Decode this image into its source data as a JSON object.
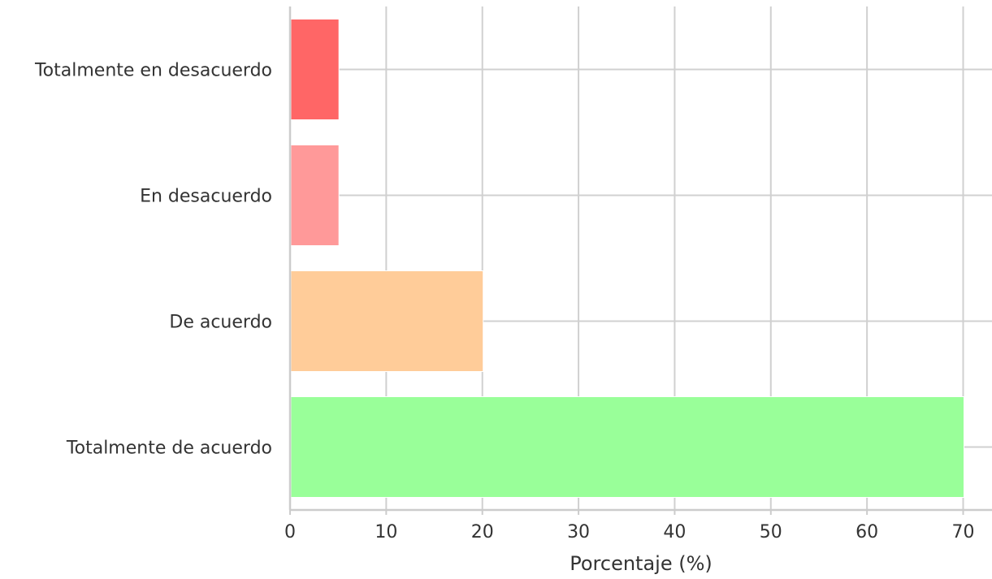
{
  "chart_data": {
    "type": "bar",
    "orientation": "horizontal",
    "title": "",
    "xlabel": "Porcentaje (%)",
    "ylabel": "",
    "categories": [
      "Totalmente en desacuerdo",
      "En desacuerdo",
      "De acuerdo",
      "Totalmente de acuerdo"
    ],
    "values": [
      5,
      5,
      20,
      70
    ],
    "colors": [
      "#ff6666",
      "#ff9999",
      "#ffcc99",
      "#99ff99"
    ],
    "xlim": [
      0,
      73
    ],
    "xticks": [
      0,
      10,
      20,
      30,
      40,
      50,
      60,
      70
    ],
    "grid": true,
    "grid_color": "#d0d0d0"
  }
}
